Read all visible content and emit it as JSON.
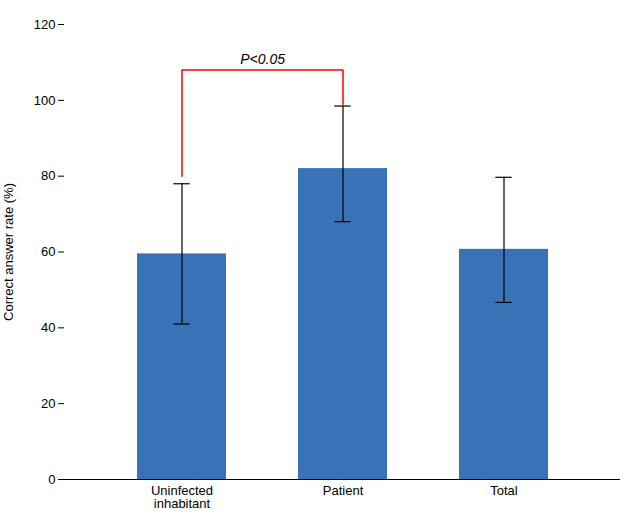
{
  "chart_data": {
    "type": "bar",
    "categories": [
      "Uninfected\ninhabitant",
      "Patient",
      "Total"
    ],
    "values": [
      59.5,
      82.0,
      60.7
    ],
    "errors_upper": [
      18.5,
      16.5,
      19.0
    ],
    "errors_lower": [
      18.5,
      14.0,
      14.0
    ],
    "color": "#3A72B8",
    "ylabel": "Correct answer rate (%)",
    "ylim": [
      0,
      120
    ],
    "yticks": [
      0,
      20,
      40,
      60,
      80,
      100,
      120
    ],
    "grid": false,
    "significance": {
      "text": "P<0.05",
      "from": "Uninfected\ninhabitant",
      "to": "Patient",
      "y_top": 108,
      "left_bottom": 80,
      "right_bottom": 99,
      "color": "red"
    }
  }
}
